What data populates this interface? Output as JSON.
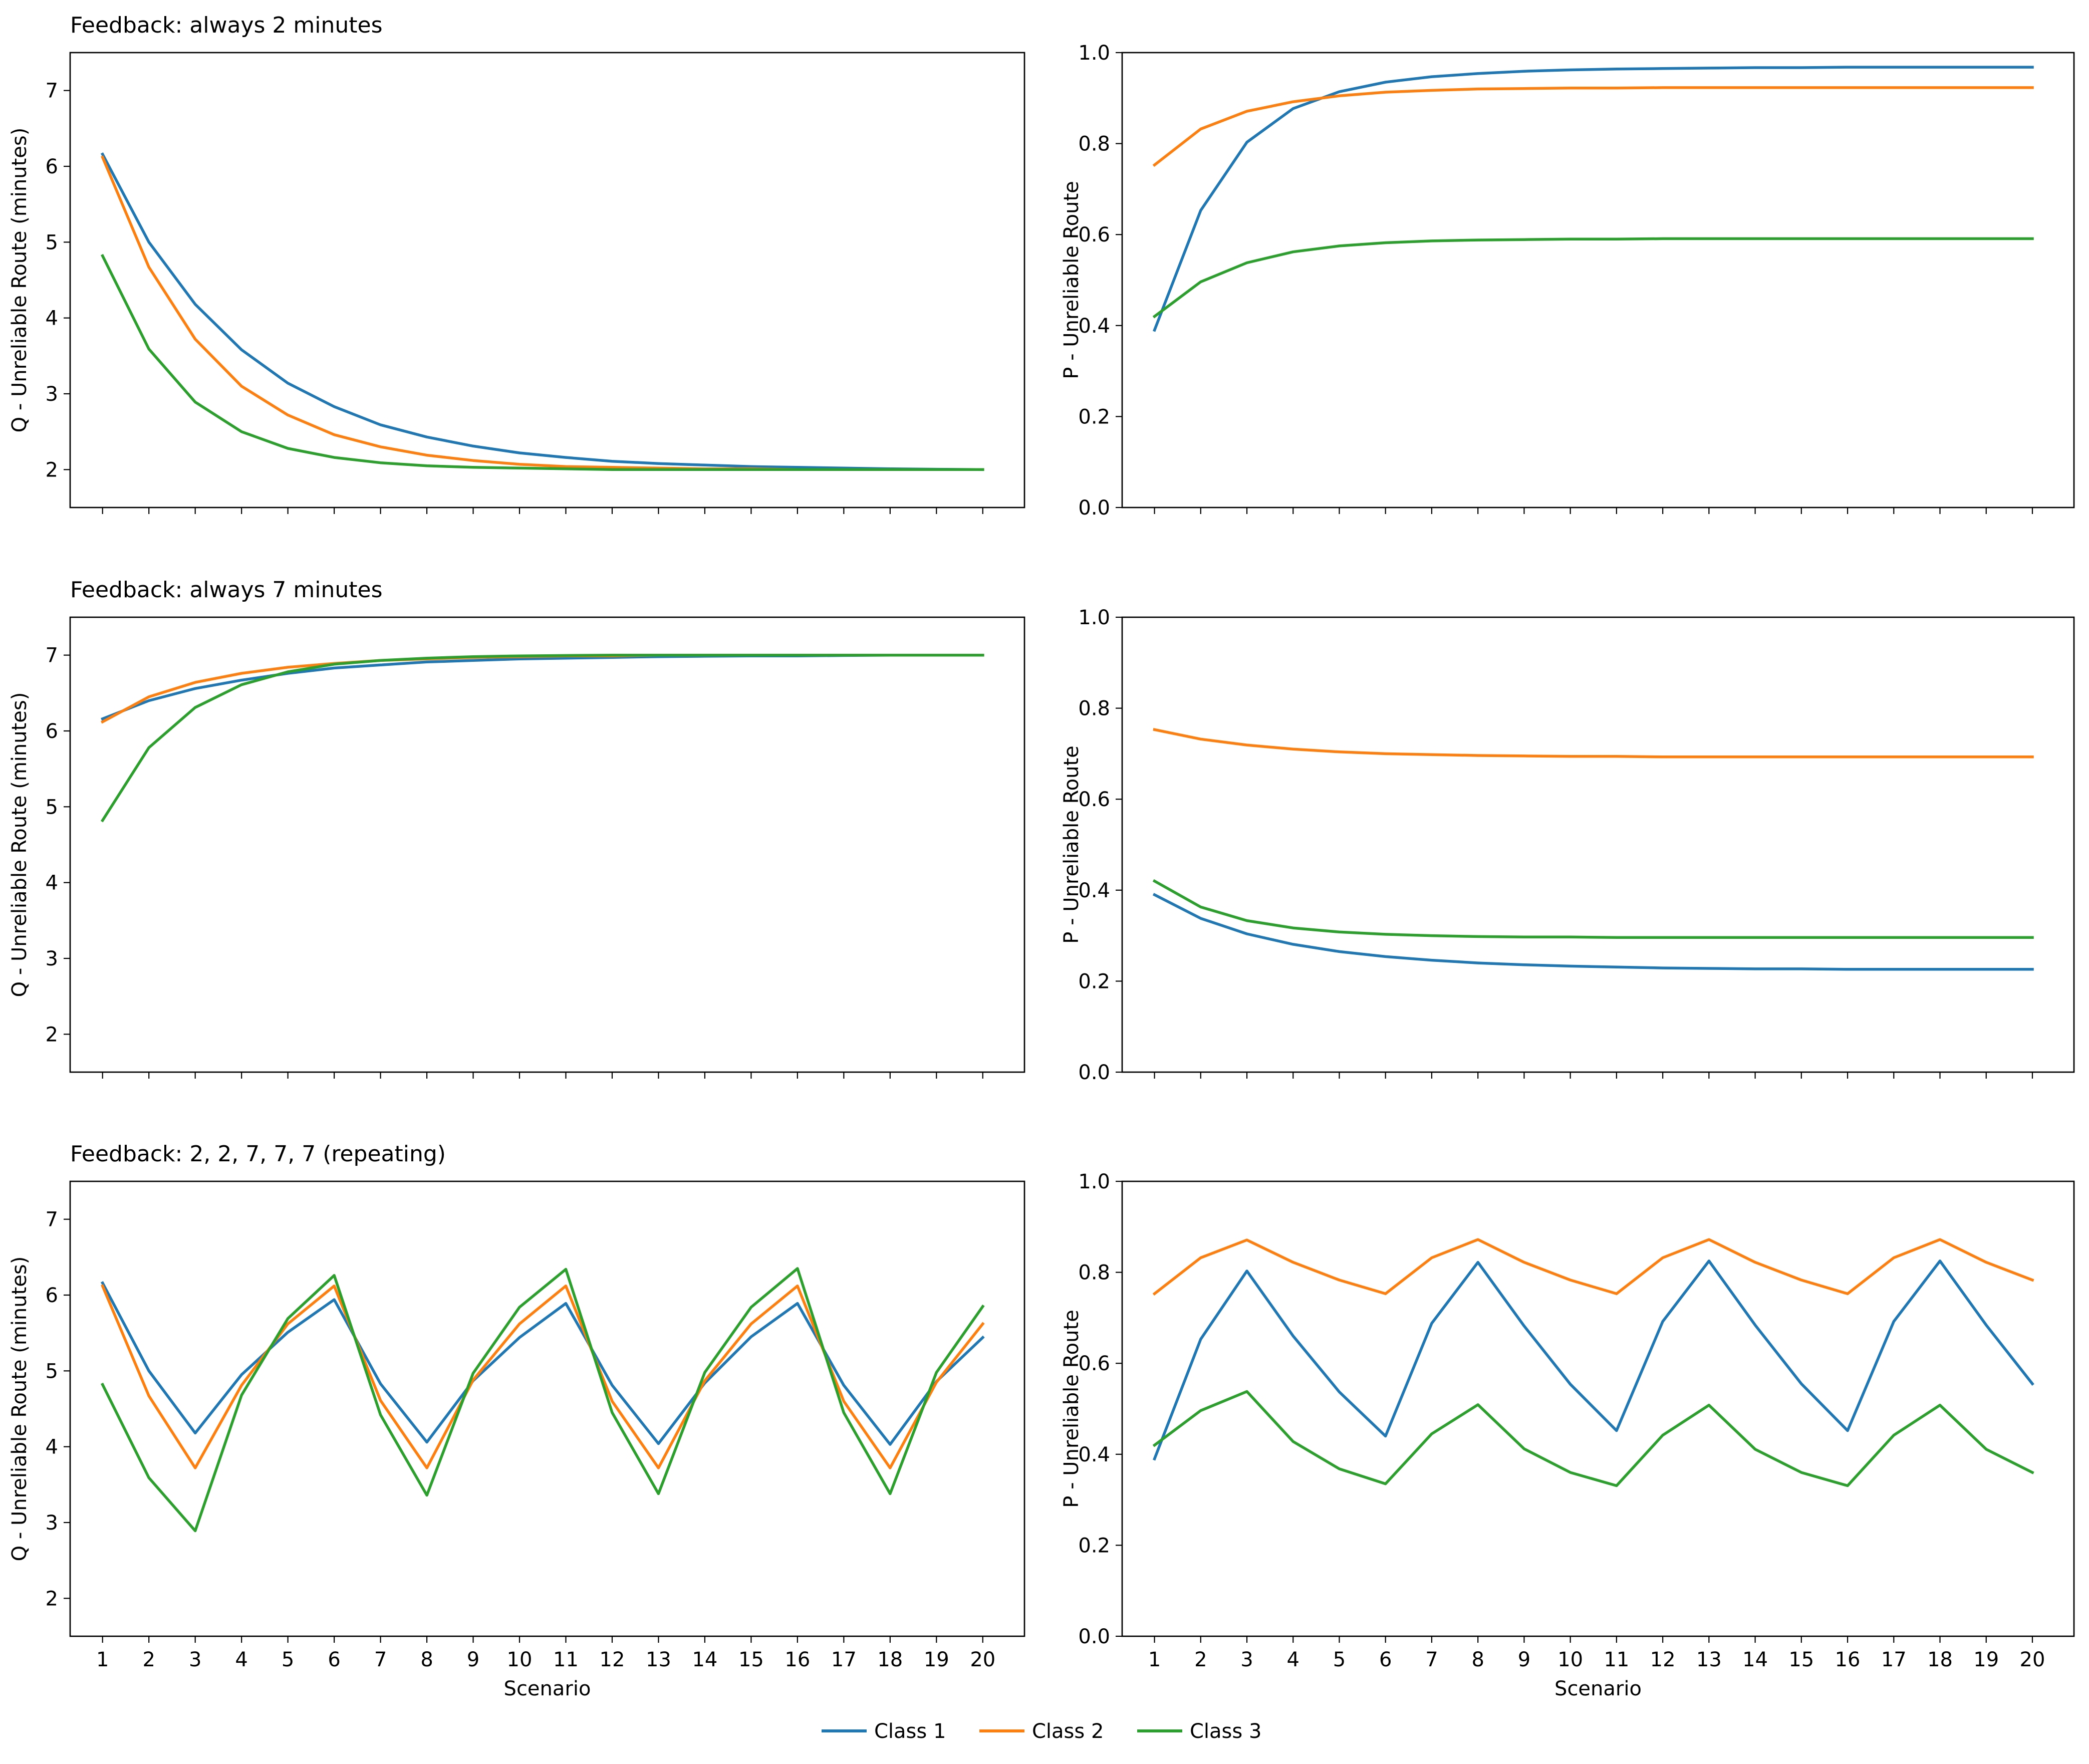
{
  "figure": {
    "legend": [
      {
        "label": "Class 1",
        "color": "#1f77b4"
      },
      {
        "label": "Class 2",
        "color": "#ff7f0e"
      },
      {
        "label": "Class 3",
        "color": "#2ca02c"
      }
    ]
  },
  "chart_data": [
    {
      "type": "line",
      "title": "Feedback: always 2 minutes",
      "xlabel": "",
      "ylabel": "Q - Unreliable Route (minutes)",
      "xlim": [
        0.3,
        20.9
      ],
      "ylim": [
        1.5,
        7.5
      ],
      "yticks": [
        2,
        3,
        4,
        5,
        6,
        7
      ],
      "ytick_labels": [
        "2",
        "3",
        "4",
        "5",
        "6",
        "7"
      ],
      "x": [
        1,
        2,
        3,
        4,
        5,
        6,
        7,
        8,
        9,
        10,
        11,
        12,
        13,
        14,
        15,
        16,
        17,
        18,
        19,
        20
      ],
      "xtick_labels": [],
      "series": [
        {
          "name": "Class 1",
          "color": "#1f77b4",
          "values": [
            6.16,
            5.0,
            4.18,
            3.58,
            3.14,
            2.83,
            2.59,
            2.43,
            2.31,
            2.22,
            2.16,
            2.11,
            2.08,
            2.06,
            2.04,
            2.03,
            2.02,
            2.01,
            2.005,
            2.0
          ]
        },
        {
          "name": "Class 2",
          "color": "#ff7f0e",
          "values": [
            6.12,
            4.67,
            3.72,
            3.1,
            2.72,
            2.46,
            2.3,
            2.19,
            2.12,
            2.07,
            2.04,
            2.03,
            2.02,
            2.01,
            2.01,
            2.0,
            2.0,
            2.0,
            2.0,
            2.0
          ]
        },
        {
          "name": "Class 3",
          "color": "#2ca02c",
          "values": [
            4.82,
            3.59,
            2.89,
            2.5,
            2.28,
            2.16,
            2.09,
            2.05,
            2.03,
            2.02,
            2.01,
            2.0,
            2.0,
            2.0,
            2.0,
            2.0,
            2.0,
            2.0,
            2.0,
            2.0
          ]
        }
      ]
    },
    {
      "type": "line",
      "title": "",
      "xlabel": "",
      "ylabel": "P - Unreliable Route",
      "xlim": [
        0.3,
        20.9
      ],
      "ylim": [
        0.0,
        1.0
      ],
      "yticks": [
        0,
        0.2,
        0.4,
        0.6,
        0.8,
        1.0
      ],
      "ytick_labels": [
        "0.0",
        "0.2",
        "0.4",
        "0.6",
        "0.8",
        "1.0"
      ],
      "x": [
        1,
        2,
        3,
        4,
        5,
        6,
        7,
        8,
        9,
        10,
        11,
        12,
        13,
        14,
        15,
        16,
        17,
        18,
        19,
        20
      ],
      "xtick_labels": [],
      "series": [
        {
          "name": "Class 1",
          "color": "#1f77b4",
          "values": [
            0.39,
            0.653,
            0.803,
            0.877,
            0.914,
            0.935,
            0.947,
            0.954,
            0.959,
            0.962,
            0.964,
            0.965,
            0.966,
            0.967,
            0.967,
            0.968,
            0.968,
            0.968,
            0.968,
            0.968
          ]
        },
        {
          "name": "Class 2",
          "color": "#ff7f0e",
          "values": [
            0.753,
            0.832,
            0.871,
            0.892,
            0.905,
            0.913,
            0.917,
            0.92,
            0.921,
            0.922,
            0.922,
            0.923,
            0.923,
            0.923,
            0.923,
            0.923,
            0.923,
            0.923,
            0.923,
            0.923
          ]
        },
        {
          "name": "Class 3",
          "color": "#2ca02c",
          "values": [
            0.42,
            0.496,
            0.538,
            0.562,
            0.575,
            0.582,
            0.586,
            0.588,
            0.589,
            0.59,
            0.59,
            0.591,
            0.591,
            0.591,
            0.591,
            0.591,
            0.591,
            0.591,
            0.591,
            0.591
          ]
        }
      ]
    },
    {
      "type": "line",
      "title": "Feedback: always 7 minutes",
      "xlabel": "",
      "ylabel": "Q - Unreliable Route (minutes)",
      "xlim": [
        0.3,
        20.9
      ],
      "ylim": [
        1.5,
        7.5
      ],
      "yticks": [
        2,
        3,
        4,
        5,
        6,
        7
      ],
      "ytick_labels": [
        "2",
        "3",
        "4",
        "5",
        "6",
        "7"
      ],
      "x": [
        1,
        2,
        3,
        4,
        5,
        6,
        7,
        8,
        9,
        10,
        11,
        12,
        13,
        14,
        15,
        16,
        17,
        18,
        19,
        20
      ],
      "xtick_labels": [],
      "series": [
        {
          "name": "Class 1",
          "color": "#1f77b4",
          "values": [
            6.16,
            6.4,
            6.56,
            6.67,
            6.76,
            6.83,
            6.87,
            6.91,
            6.93,
            6.95,
            6.96,
            6.97,
            6.98,
            6.985,
            6.99,
            6.99,
            6.995,
            7.0,
            7.0,
            7.0
          ]
        },
        {
          "name": "Class 2",
          "color": "#ff7f0e",
          "values": [
            6.12,
            6.45,
            6.64,
            6.76,
            6.84,
            6.89,
            6.93,
            6.95,
            6.97,
            6.98,
            6.99,
            6.99,
            7.0,
            7.0,
            7.0,
            7.0,
            7.0,
            7.0,
            7.0,
            7.0
          ]
        },
        {
          "name": "Class 3",
          "color": "#2ca02c",
          "values": [
            4.82,
            5.78,
            6.31,
            6.61,
            6.78,
            6.88,
            6.93,
            6.96,
            6.98,
            6.99,
            6.995,
            7.0,
            7.0,
            7.0,
            7.0,
            7.0,
            7.0,
            7.0,
            7.0,
            7.0
          ]
        }
      ]
    },
    {
      "type": "line",
      "title": "",
      "xlabel": "",
      "ylabel": "P - Unreliable Route",
      "xlim": [
        0.3,
        20.9
      ],
      "ylim": [
        0.0,
        1.0
      ],
      "yticks": [
        0,
        0.2,
        0.4,
        0.6,
        0.8,
        1.0
      ],
      "ytick_labels": [
        "0.0",
        "0.2",
        "0.4",
        "0.6",
        "0.8",
        "1.0"
      ],
      "x": [
        1,
        2,
        3,
        4,
        5,
        6,
        7,
        8,
        9,
        10,
        11,
        12,
        13,
        14,
        15,
        16,
        17,
        18,
        19,
        20
      ],
      "xtick_labels": [],
      "series": [
        {
          "name": "Class 1",
          "color": "#1f77b4",
          "values": [
            0.39,
            0.338,
            0.304,
            0.281,
            0.265,
            0.254,
            0.246,
            0.24,
            0.236,
            0.233,
            0.231,
            0.229,
            0.228,
            0.227,
            0.227,
            0.226,
            0.226,
            0.226,
            0.226,
            0.226
          ]
        },
        {
          "name": "Class 2",
          "color": "#ff7f0e",
          "values": [
            0.753,
            0.732,
            0.719,
            0.71,
            0.704,
            0.7,
            0.698,
            0.696,
            0.695,
            0.694,
            0.694,
            0.693,
            0.693,
            0.693,
            0.693,
            0.693,
            0.693,
            0.693,
            0.693,
            0.693
          ]
        },
        {
          "name": "Class 3",
          "color": "#2ca02c",
          "values": [
            0.42,
            0.363,
            0.333,
            0.317,
            0.308,
            0.303,
            0.3,
            0.298,
            0.297,
            0.297,
            0.296,
            0.296,
            0.296,
            0.296,
            0.296,
            0.296,
            0.296,
            0.296,
            0.296,
            0.296
          ]
        }
      ]
    },
    {
      "type": "line",
      "title": "Feedback: 2, 2, 7, 7, 7 (repeating)",
      "xlabel": "Scenario",
      "ylabel": "Q - Unreliable Route (minutes)",
      "xlim": [
        0.3,
        20.9
      ],
      "ylim": [
        1.5,
        7.5
      ],
      "yticks": [
        2,
        3,
        4,
        5,
        6,
        7
      ],
      "ytick_labels": [
        "2",
        "3",
        "4",
        "5",
        "6",
        "7"
      ],
      "x": [
        1,
        2,
        3,
        4,
        5,
        6,
        7,
        8,
        9,
        10,
        11,
        12,
        13,
        14,
        15,
        16,
        17,
        18,
        19,
        20
      ],
      "xtick_labels": [
        "1",
        "2",
        "3",
        "4",
        "5",
        "6",
        "7",
        "8",
        "9",
        "10",
        "11",
        "12",
        "13",
        "14",
        "15",
        "16",
        "17",
        "18",
        "19",
        "20"
      ],
      "series": [
        {
          "name": "Class 1",
          "color": "#1f77b4",
          "values": [
            6.16,
            5.0,
            4.18,
            4.95,
            5.51,
            5.94,
            4.83,
            4.06,
            4.87,
            5.44,
            5.89,
            4.81,
            4.04,
            4.84,
            5.45,
            5.89,
            4.81,
            4.03,
            4.86,
            5.44
          ]
        },
        {
          "name": "Class 2",
          "color": "#ff7f0e",
          "values": [
            6.12,
            4.67,
            3.72,
            4.81,
            5.62,
            6.12,
            4.61,
            3.72,
            4.88,
            5.62,
            6.12,
            4.6,
            3.72,
            4.87,
            5.62,
            6.12,
            4.6,
            3.72,
            4.85,
            5.62
          ]
        },
        {
          "name": "Class 3",
          "color": "#2ca02c",
          "values": [
            4.82,
            3.59,
            2.89,
            4.68,
            5.69,
            6.26,
            4.42,
            3.36,
            4.97,
            5.84,
            6.34,
            4.45,
            3.38,
            4.98,
            5.84,
            6.35,
            4.45,
            3.38,
            4.98,
            5.85
          ]
        }
      ]
    },
    {
      "type": "line",
      "title": "",
      "xlabel": "Scenario",
      "ylabel": "P - Unreliable Route",
      "xlim": [
        0.3,
        20.9
      ],
      "ylim": [
        0.0,
        1.0
      ],
      "yticks": [
        0,
        0.2,
        0.4,
        0.6,
        0.8,
        1.0
      ],
      "ytick_labels": [
        "0.0",
        "0.2",
        "0.4",
        "0.6",
        "0.8",
        "1.0"
      ],
      "x": [
        1,
        2,
        3,
        4,
        5,
        6,
        7,
        8,
        9,
        10,
        11,
        12,
        13,
        14,
        15,
        16,
        17,
        18,
        19,
        20
      ],
      "xtick_labels": [
        "1",
        "2",
        "3",
        "4",
        "5",
        "6",
        "7",
        "8",
        "9",
        "10",
        "11",
        "12",
        "13",
        "14",
        "15",
        "16",
        "17",
        "18",
        "19",
        "20"
      ],
      "series": [
        {
          "name": "Class 1",
          "color": "#1f77b4",
          "values": [
            0.39,
            0.653,
            0.803,
            0.66,
            0.537,
            0.44,
            0.688,
            0.822,
            0.682,
            0.554,
            0.452,
            0.692,
            0.825,
            0.684,
            0.555,
            0.452,
            0.692,
            0.825,
            0.684,
            0.555
          ]
        },
        {
          "name": "Class 2",
          "color": "#ff7f0e",
          "values": [
            0.753,
            0.832,
            0.871,
            0.822,
            0.783,
            0.753,
            0.832,
            0.872,
            0.822,
            0.783,
            0.753,
            0.832,
            0.872,
            0.822,
            0.783,
            0.753,
            0.832,
            0.872,
            0.822,
            0.783
          ]
        },
        {
          "name": "Class 3",
          "color": "#2ca02c",
          "values": [
            0.42,
            0.496,
            0.538,
            0.428,
            0.368,
            0.335,
            0.445,
            0.509,
            0.412,
            0.36,
            0.331,
            0.442,
            0.508,
            0.411,
            0.36,
            0.331,
            0.442,
            0.508,
            0.411,
            0.36
          ]
        }
      ]
    }
  ]
}
